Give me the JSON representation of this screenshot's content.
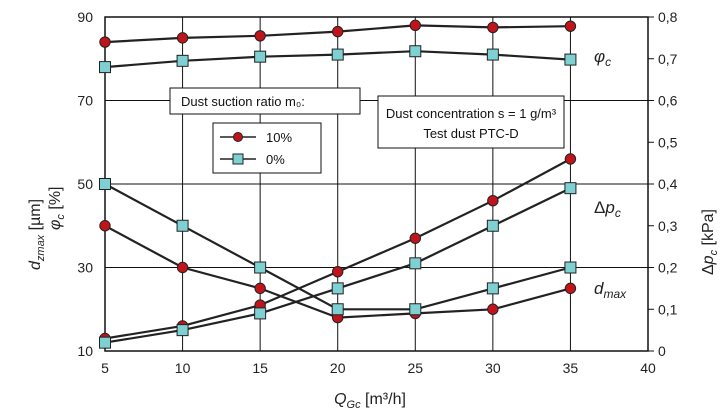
{
  "chart_data": {
    "type": "line",
    "xlabel": "Q_Gc [m³/h]",
    "ylabel_left_top": "d_zmax [µm]",
    "ylabel_left_bottom": "φ_c [%]",
    "ylabel_right": "Δp_c [kPa]",
    "x_ticks": [
      "5",
      "10",
      "15",
      "20",
      "25",
      "30",
      "35",
      "40"
    ],
    "y_left_ticks": [
      "10",
      "30",
      "50",
      "70",
      "90"
    ],
    "y_right_ticks": [
      "0",
      "0,1",
      "0,2",
      "0,3",
      "0,4",
      "0,5",
      "0,6",
      "0,7",
      "0,8"
    ],
    "xlim": [
      5,
      40
    ],
    "ylim_left": [
      10,
      90
    ],
    "ylim_right": [
      0,
      0.8
    ],
    "grid": true,
    "legend": {
      "title": "Dust suction ratio m₀:",
      "entries": [
        {
          "label": "10%",
          "marker": "circle",
          "color": "#c0141b"
        },
        {
          "label": "0%",
          "marker": "square",
          "color": "#7fd0d3"
        }
      ]
    },
    "info_box": {
      "line1": "Dust concentration s = 1 g/m³",
      "line2": "Test dust PTC-D"
    },
    "curve_labels": {
      "phi": "φc",
      "dp": "Δpc",
      "dmax": "dmax"
    },
    "series": [
      {
        "label": "10%",
        "quantity": "φc",
        "axis": "left",
        "marker": "circle",
        "x": [
          5,
          10,
          15,
          20,
          25,
          30,
          35
        ],
        "y": [
          84,
          85,
          85.5,
          86.5,
          88,
          87.5,
          87.8
        ]
      },
      {
        "label": "0%",
        "quantity": "φc",
        "axis": "left",
        "marker": "square",
        "x": [
          5,
          10,
          15,
          20,
          25,
          30,
          35
        ],
        "y": [
          78,
          79.5,
          80.5,
          81,
          81.8,
          81,
          79.8
        ]
      },
      {
        "label": "10%",
        "quantity": "Δpc",
        "axis": "right",
        "marker": "circle",
        "x": [
          5,
          10,
          15,
          20,
          25,
          30,
          35
        ],
        "y": [
          0.03,
          0.06,
          0.11,
          0.19,
          0.27,
          0.36,
          0.46
        ]
      },
      {
        "label": "0%",
        "quantity": "Δpc",
        "axis": "right",
        "marker": "square",
        "x": [
          5,
          10,
          15,
          20,
          25,
          30,
          35
        ],
        "y": [
          0.02,
          0.05,
          0.09,
          0.15,
          0.21,
          0.3,
          0.39
        ]
      },
      {
        "label": "10%",
        "quantity": "dmax",
        "axis": "left",
        "marker": "circle",
        "x": [
          5,
          10,
          15,
          20,
          25,
          30,
          35
        ],
        "y": [
          40,
          30,
          25,
          18,
          19,
          20,
          25
        ]
      },
      {
        "label": "0%",
        "quantity": "dmax",
        "axis": "left",
        "marker": "square",
        "x": [
          5,
          10,
          15,
          20,
          25,
          30,
          35
        ],
        "y": [
          50,
          40,
          30,
          20,
          20,
          25,
          30
        ]
      }
    ],
    "colors": {
      "line": "#222222",
      "circle_fill": "#c0141b",
      "square_fill": "#7fd0d3",
      "grid": "#111111"
    }
  }
}
